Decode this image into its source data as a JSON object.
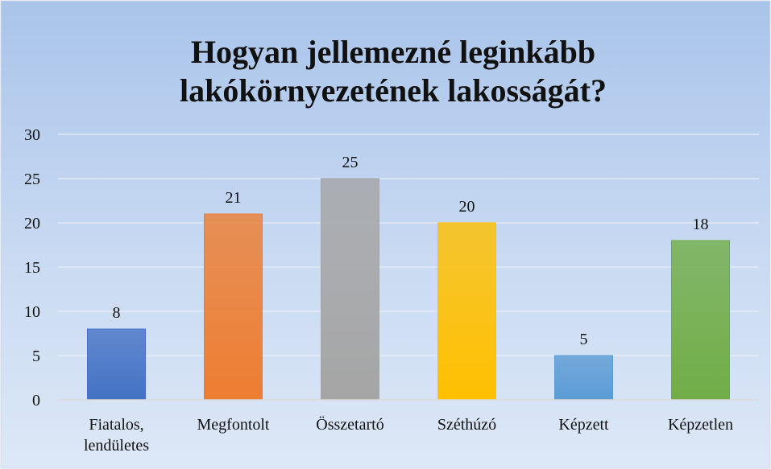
{
  "chart_data": {
    "type": "bar",
    "title": "Hogyan jellemezné leginkább lakókörnyezetének lakosságát?",
    "categories": [
      "Fiatalos, lendületes",
      "Megfontolt",
      "Összetartó",
      "Széthúzó",
      "Képzett",
      "Képzetlen"
    ],
    "values": [
      8,
      21,
      25,
      20,
      5,
      18
    ],
    "colors": [
      "#4472c4",
      "#ed7d31",
      "#a5a5a5",
      "#ffc000",
      "#5b9bd5",
      "#70ad47"
    ],
    "ylim": [
      0,
      30
    ],
    "yticks": [
      0,
      5,
      10,
      15,
      20,
      25,
      30
    ],
    "grid": true
  }
}
